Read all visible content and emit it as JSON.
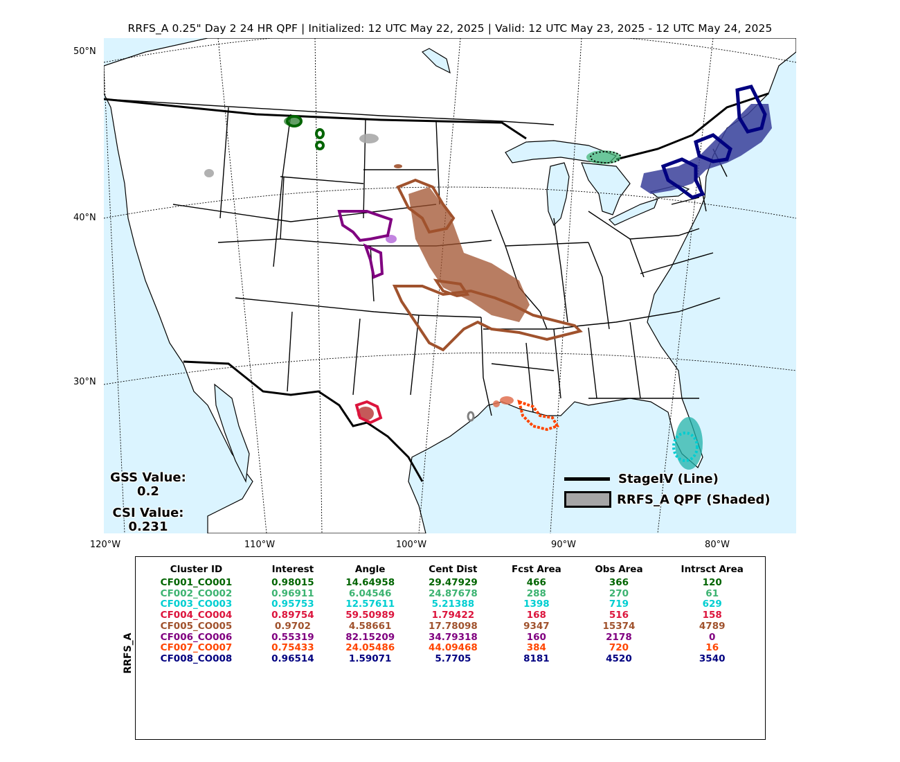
{
  "title": "RRFS_A 0.25\" Day 2 24 HR QPF | Initialized: 12 UTC May 22, 2025 | Valid: 12 UTC May 23, 2025 - 12 UTC May 24, 2025",
  "lat_labels": [
    "50°N",
    "40°N",
    "30°N"
  ],
  "lon_labels": [
    "120°W",
    "110°W",
    "100°W",
    "90°W",
    "80°W"
  ],
  "stats": {
    "gss_label": "GSS Value:",
    "gss_value": "0.2",
    "csi_label": "CSI Value:",
    "csi_value": "0.231"
  },
  "legend": {
    "line_label": "StageIV (Line)",
    "shaded_label": "RRFS_A QPF (Shaded)"
  },
  "colors": {
    "ocean": "#dbf4ff",
    "land": "#ffffff",
    "border": "#000000"
  },
  "table": {
    "ylabel": "RRFS_A",
    "headers": [
      "Cluster ID",
      "Interest",
      "Angle",
      "Cent Dist",
      "Fcst Area",
      "Obs Area",
      "Intrsct Area"
    ],
    "rows": [
      {
        "color": "#006400",
        "cells": [
          "CF001_CO001",
          "0.98015",
          "14.64958",
          "29.47929",
          "466",
          "366",
          "120"
        ]
      },
      {
        "color": "#3cb371",
        "cells": [
          "CF002_CO002",
          "0.96911",
          "6.04546",
          "24.87678",
          "288",
          "270",
          "61"
        ]
      },
      {
        "color": "#00ced1",
        "cells": [
          "CF003_CO003",
          "0.95753",
          "12.57611",
          "5.21388",
          "1398",
          "719",
          "629"
        ]
      },
      {
        "color": "#dc143c",
        "cells": [
          "CF004_CO004",
          "0.89754",
          "59.50989",
          "1.79422",
          "168",
          "516",
          "158"
        ]
      },
      {
        "color": "#a0522d",
        "cells": [
          "CF005_CO005",
          "0.9702",
          "4.58661",
          "17.78098",
          "9347",
          "15374",
          "4789"
        ]
      },
      {
        "color": "#800080",
        "cells": [
          "CF006_CO006",
          "0.55319",
          "82.15209",
          "34.79318",
          "160",
          "2178",
          "0"
        ]
      },
      {
        "color": "#ff4500",
        "cells": [
          "CF007_CO007",
          "0.75433",
          "24.05486",
          "44.09468",
          "384",
          "720",
          "16"
        ]
      },
      {
        "color": "#000080",
        "cells": [
          "CF008_CO008",
          "0.96514",
          "1.59071",
          "5.7705",
          "8181",
          "4520",
          "3540"
        ]
      }
    ]
  }
}
